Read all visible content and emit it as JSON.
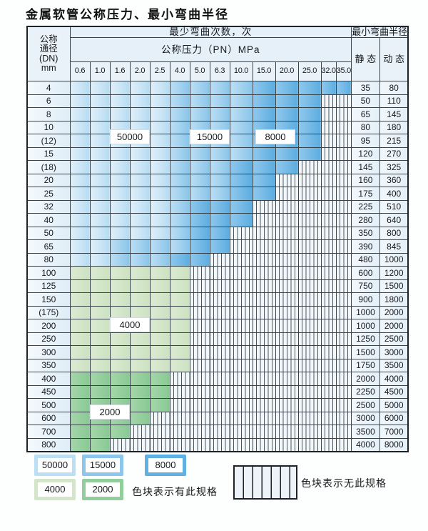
{
  "title": "金属软管公称压力、最小弯曲半径",
  "table": {
    "dn_header_lines": [
      "公称",
      "通径",
      "(DN)",
      "mm"
    ],
    "bend_count_header": "最少弯曲次数，次",
    "pressure_header": "公称压力（PN）MPa",
    "radius_header": "最小弯曲半径",
    "static_label": "静 态",
    "dynamic_label": "动 态",
    "pressure_cols": [
      "0.6",
      "1.0",
      "1.6",
      "2.0",
      "2.5",
      "4.0",
      "5.0",
      "6.3",
      "10.0",
      "15.0",
      "20.0",
      "25.0",
      "32.0",
      "35.0"
    ],
    "rows": [
      {
        "dn": "4",
        "static": "35",
        "dynamic": "80"
      },
      {
        "dn": "6",
        "static": "50",
        "dynamic": "110"
      },
      {
        "dn": "8",
        "static": "65",
        "dynamic": "145"
      },
      {
        "dn": "10",
        "static": "80",
        "dynamic": "180"
      },
      {
        "dn": "(12)",
        "static": "95",
        "dynamic": "215"
      },
      {
        "dn": "15",
        "static": "120",
        "dynamic": "270"
      },
      {
        "dn": "(18)",
        "static": "145",
        "dynamic": "325"
      },
      {
        "dn": "20",
        "static": "160",
        "dynamic": "360"
      },
      {
        "dn": "25",
        "static": "175",
        "dynamic": "400"
      },
      {
        "dn": "32",
        "static": "225",
        "dynamic": "510"
      },
      {
        "dn": "40",
        "static": "280",
        "dynamic": "640"
      },
      {
        "dn": "50",
        "static": "350",
        "dynamic": "800"
      },
      {
        "dn": "65",
        "static": "390",
        "dynamic": "845"
      },
      {
        "dn": "80",
        "static": "480",
        "dynamic": "1000"
      },
      {
        "dn": "100",
        "static": "600",
        "dynamic": "1200"
      },
      {
        "dn": "125",
        "static": "750",
        "dynamic": "1500"
      },
      {
        "dn": "150",
        "static": "900",
        "dynamic": "1800"
      },
      {
        "dn": "(175)",
        "static": "1000",
        "dynamic": "2000"
      },
      {
        "dn": "200",
        "static": "1000",
        "dynamic": "2000"
      },
      {
        "dn": "250",
        "static": "1250",
        "dynamic": "2500"
      },
      {
        "dn": "300",
        "static": "1500",
        "dynamic": "3000"
      },
      {
        "dn": "350",
        "static": "1750",
        "dynamic": "3500"
      },
      {
        "dn": "400",
        "static": "2000",
        "dynamic": "4000"
      },
      {
        "dn": "450",
        "static": "2250",
        "dynamic": "4500"
      },
      {
        "dn": "500",
        "static": "2500",
        "dynamic": "5000"
      },
      {
        "dn": "600",
        "static": "3000",
        "dynamic": "6000"
      },
      {
        "dn": "700",
        "static": "3500",
        "dynamic": "7000"
      },
      {
        "dn": "800",
        "static": "4000",
        "dynamic": "8000"
      }
    ]
  },
  "chart_data": {
    "type": "heatmap",
    "title": "金属软管公称压力、最小弯曲半径",
    "xlabel": "公称压力（PN）MPa",
    "ylabel": "公称通径(DN) mm",
    "x_categories": [
      "0.6",
      "1.0",
      "1.6",
      "2.0",
      "2.5",
      "4.0",
      "5.0",
      "6.3",
      "10.0",
      "15.0",
      "20.0",
      "25.0",
      "32.0",
      "35.0"
    ],
    "y_categories": [
      "4",
      "6",
      "8",
      "10",
      "(12)",
      "15",
      "(18)",
      "20",
      "25",
      "32",
      "40",
      "50",
      "65",
      "80",
      "100",
      "125",
      "150",
      "(175)",
      "200",
      "250",
      "300",
      "350",
      "400",
      "450",
      "500",
      "600",
      "700",
      "800"
    ],
    "value_meaning": "minimum bend cycles; null = specification not available",
    "cells": [
      [
        50000,
        50000,
        50000,
        50000,
        50000,
        15000,
        15000,
        15000,
        15000,
        8000,
        8000,
        8000,
        8000,
        8000
      ],
      [
        50000,
        50000,
        50000,
        50000,
        50000,
        15000,
        15000,
        15000,
        15000,
        8000,
        8000,
        8000,
        null,
        null
      ],
      [
        50000,
        50000,
        50000,
        50000,
        50000,
        15000,
        15000,
        15000,
        15000,
        8000,
        8000,
        8000,
        null,
        null
      ],
      [
        50000,
        50000,
        50000,
        50000,
        50000,
        15000,
        15000,
        15000,
        15000,
        8000,
        8000,
        8000,
        null,
        null
      ],
      [
        50000,
        50000,
        50000,
        50000,
        50000,
        15000,
        15000,
        15000,
        15000,
        8000,
        8000,
        8000,
        null,
        null
      ],
      [
        50000,
        50000,
        50000,
        50000,
        50000,
        15000,
        15000,
        15000,
        15000,
        8000,
        8000,
        8000,
        null,
        null
      ],
      [
        50000,
        50000,
        50000,
        50000,
        50000,
        15000,
        15000,
        15000,
        8000,
        8000,
        8000,
        null,
        null,
        null
      ],
      [
        50000,
        50000,
        50000,
        50000,
        50000,
        15000,
        15000,
        15000,
        8000,
        8000,
        null,
        null,
        null,
        null
      ],
      [
        50000,
        50000,
        50000,
        50000,
        50000,
        15000,
        15000,
        15000,
        8000,
        8000,
        null,
        null,
        null,
        null
      ],
      [
        50000,
        50000,
        50000,
        50000,
        50000,
        15000,
        8000,
        8000,
        8000,
        null,
        null,
        null,
        null,
        null
      ],
      [
        50000,
        50000,
        50000,
        50000,
        50000,
        15000,
        8000,
        8000,
        8000,
        null,
        null,
        null,
        null,
        null
      ],
      [
        50000,
        50000,
        50000,
        50000,
        50000,
        15000,
        8000,
        8000,
        null,
        null,
        null,
        null,
        null,
        null
      ],
      [
        50000,
        50000,
        15000,
        15000,
        15000,
        15000,
        8000,
        8000,
        null,
        null,
        null,
        null,
        null,
        null
      ],
      [
        50000,
        50000,
        15000,
        15000,
        15000,
        8000,
        8000,
        null,
        null,
        null,
        null,
        null,
        null,
        null
      ],
      [
        4000,
        4000,
        4000,
        4000,
        4000,
        4000,
        null,
        null,
        null,
        null,
        null,
        null,
        null,
        null
      ],
      [
        4000,
        4000,
        4000,
        4000,
        4000,
        4000,
        null,
        null,
        null,
        null,
        null,
        null,
        null,
        null
      ],
      [
        4000,
        4000,
        4000,
        4000,
        4000,
        4000,
        null,
        null,
        null,
        null,
        null,
        null,
        null,
        null
      ],
      [
        4000,
        4000,
        4000,
        4000,
        4000,
        4000,
        null,
        null,
        null,
        null,
        null,
        null,
        null,
        null
      ],
      [
        4000,
        4000,
        4000,
        4000,
        4000,
        4000,
        null,
        null,
        null,
        null,
        null,
        null,
        null,
        null
      ],
      [
        4000,
        4000,
        4000,
        4000,
        4000,
        4000,
        null,
        null,
        null,
        null,
        null,
        null,
        null,
        null
      ],
      [
        4000,
        4000,
        4000,
        4000,
        4000,
        4000,
        null,
        null,
        null,
        null,
        null,
        null,
        null,
        null
      ],
      [
        4000,
        4000,
        4000,
        4000,
        4000,
        4000,
        null,
        null,
        null,
        null,
        null,
        null,
        null,
        null
      ],
      [
        2000,
        2000,
        2000,
        2000,
        2000,
        null,
        null,
        null,
        null,
        null,
        null,
        null,
        null,
        null
      ],
      [
        2000,
        2000,
        2000,
        2000,
        2000,
        null,
        null,
        null,
        null,
        null,
        null,
        null,
        null,
        null
      ],
      [
        2000,
        2000,
        2000,
        2000,
        2000,
        null,
        null,
        null,
        null,
        null,
        null,
        null,
        null,
        null
      ],
      [
        2000,
        2000,
        2000,
        2000,
        null,
        null,
        null,
        null,
        null,
        null,
        null,
        null,
        null,
        null
      ],
      [
        2000,
        2000,
        2000,
        null,
        null,
        null,
        null,
        null,
        null,
        null,
        null,
        null,
        null,
        null
      ],
      [
        2000,
        2000,
        null,
        null,
        null,
        null,
        null,
        null,
        null,
        null,
        null,
        null,
        null,
        null
      ]
    ]
  },
  "overlays": [
    {
      "text": "50000",
      "cols": [
        2,
        3
      ],
      "rows": [
        3,
        4
      ]
    },
    {
      "text": "15000",
      "cols": [
        6,
        7
      ],
      "rows": [
        3,
        4
      ]
    },
    {
      "text": "8000",
      "cols": [
        9,
        10
      ],
      "rows": [
        3,
        4
      ]
    },
    {
      "text": "4000",
      "cols": [
        2,
        3
      ],
      "rows": [
        18,
        19
      ]
    },
    {
      "text": "2000",
      "cols": [
        1,
        2
      ],
      "rows": [
        25,
        26
      ]
    }
  ],
  "legend": {
    "items": [
      {
        "value": "50000",
        "color_key": "c50000"
      },
      {
        "value": "15000",
        "color_key": "c15000"
      },
      {
        "value": "8000",
        "color_key": "c8000"
      },
      {
        "value": "4000",
        "color_key": "c4000"
      },
      {
        "value": "2000",
        "color_key": "c2000"
      }
    ],
    "available_note": "色块表示有此规格",
    "unavailable_note": "色块表示无此规格"
  },
  "colors": {
    "c50000": "#bddff3",
    "c15000": "#8cc6ea",
    "c8000": "#60b0e1",
    "c4000": "#d3e6c9",
    "c2000": "#92cd9c"
  }
}
